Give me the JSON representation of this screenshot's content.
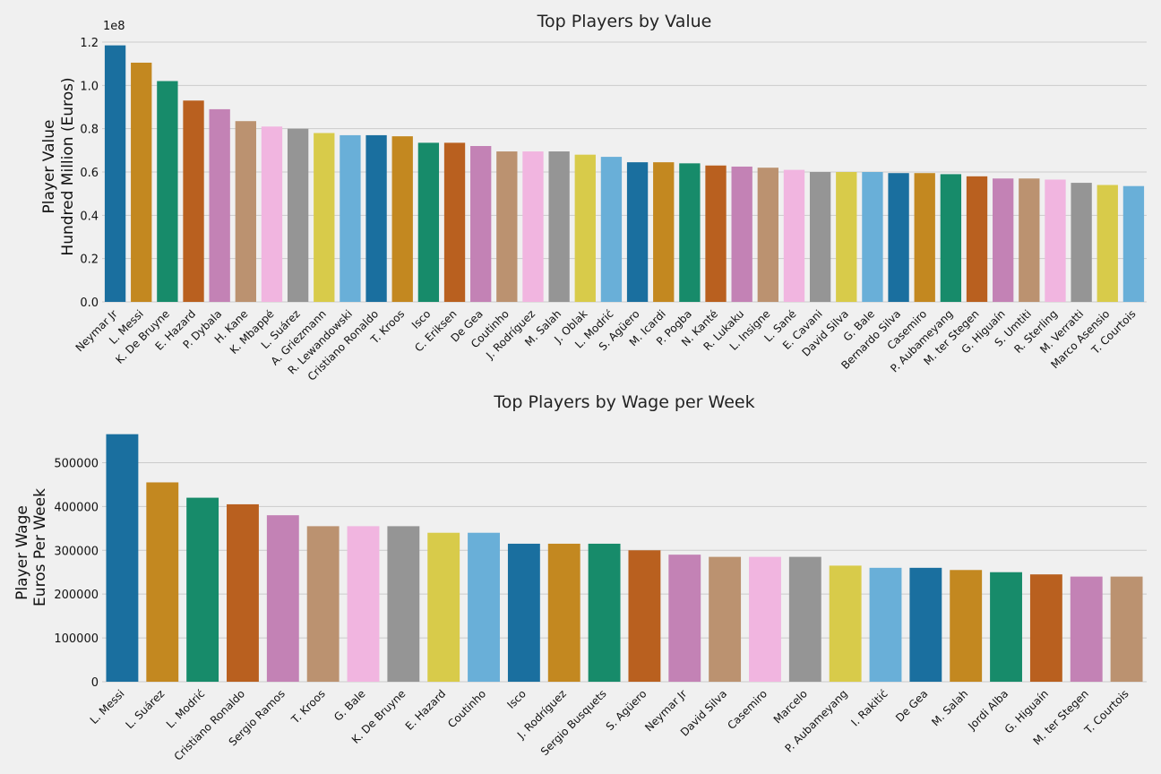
{
  "palette": [
    "#1a6f9f",
    "#c38820",
    "#178b6a",
    "#b9601f",
    "#c382b5",
    "#bb9270",
    "#f1b5e0",
    "#959595",
    "#d8cb4a",
    "#69afd8"
  ],
  "chart_data": [
    {
      "type": "bar",
      "title": "Top Players by Value",
      "ylabel_lines": [
        "Player Value",
        "Hundred Million (Euros)"
      ],
      "offset_text": "1e8",
      "ylim": [
        0,
        1.2
      ],
      "yticks": [
        0.0,
        0.2,
        0.4,
        0.6,
        0.8,
        1.0,
        1.2
      ],
      "ytick_labels": [
        "0.0",
        "0.2",
        "0.4",
        "0.6",
        "0.8",
        "1.0",
        "1.2"
      ],
      "grid": true,
      "categories": [
        "Neymar Jr",
        "L. Messi",
        "K. De Bruyne",
        "E. Hazard",
        "P. Dybala",
        "H. Kane",
        "K. Mbappé",
        "L. Suárez",
        "A. Griezmann",
        "R. Lewandowski",
        "Cristiano Ronaldo",
        "T. Kroos",
        "Isco",
        "C. Eriksen",
        "De Gea",
        "Coutinho",
        "J. Rodríguez",
        "M. Salah",
        "J. Oblak",
        "L. Modrić",
        "S. Agüero",
        "M. Icardi",
        "P. Pogba",
        "N. Kanté",
        "R. Lukaku",
        "L. Insigne",
        "L. Sané",
        "E. Cavani",
        "David Silva",
        "G. Bale",
        "Bernardo Silva",
        "Casemiro",
        "P. Aubameyang",
        "M. ter Stegen",
        "G. Higuaín",
        "S. Umtiti",
        "R. Sterling",
        "M. Verratti",
        "Marco Asensio",
        "T. Courtois"
      ],
      "values": [
        1.185,
        1.105,
        1.02,
        0.93,
        0.89,
        0.835,
        0.81,
        0.8,
        0.78,
        0.77,
        0.77,
        0.765,
        0.735,
        0.735,
        0.72,
        0.695,
        0.695,
        0.695,
        0.68,
        0.67,
        0.645,
        0.645,
        0.64,
        0.63,
        0.625,
        0.62,
        0.61,
        0.6,
        0.6,
        0.6,
        0.595,
        0.595,
        0.59,
        0.58,
        0.57,
        0.57,
        0.565,
        0.55,
        0.54,
        0.535
      ]
    },
    {
      "type": "bar",
      "title": "Top Players by Wage per Week",
      "ylabel_lines": [
        "Player Wage",
        "Euros Per Week"
      ],
      "offset_text": "",
      "ylim": [
        0,
        595000
      ],
      "yticks": [
        0,
        100000,
        200000,
        300000,
        400000,
        500000
      ],
      "ytick_labels": [
        "0",
        "100000",
        "200000",
        "300000",
        "400000",
        "500000"
      ],
      "grid": true,
      "categories": [
        "L. Messi",
        "L. Suárez",
        "L. Modrić",
        "Cristiano Ronaldo",
        "Sergio Ramos",
        "T. Kroos",
        "G. Bale",
        "K. De Bruyne",
        "E. Hazard",
        "Coutinho",
        "Isco",
        "J. Rodríguez",
        "Sergio Busquets",
        "S. Agüero",
        "Neymar Jr",
        "David Silva",
        "Casemiro",
        "Marcelo",
        "P. Aubameyang",
        "I. Rakitić",
        "De Gea",
        "M. Salah",
        "Jordi Alba",
        "G. Higuaín",
        "M. ter Stegen",
        "T. Courtois"
      ],
      "values": [
        565000,
        455000,
        420000,
        405000,
        380000,
        355000,
        355000,
        355000,
        340000,
        340000,
        315000,
        315000,
        315000,
        300000,
        290000,
        285000,
        285000,
        285000,
        265000,
        260000,
        260000,
        255000,
        250000,
        245000,
        240000,
        240000
      ]
    }
  ]
}
